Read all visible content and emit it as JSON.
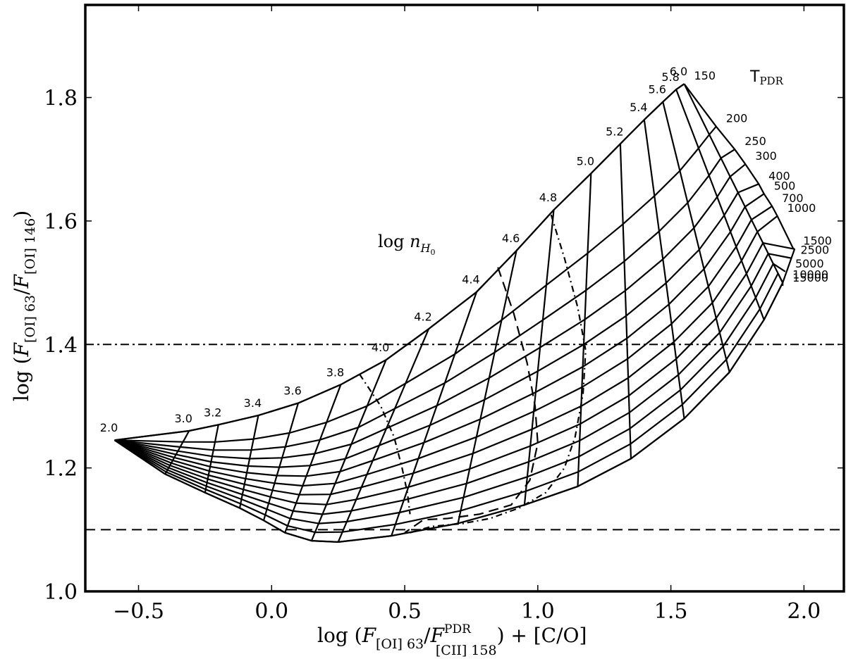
{
  "chart_data": {
    "type": "line",
    "xlim": [
      -0.7,
      2.15
    ],
    "ylim": [
      1.0,
      1.95
    ],
    "x_ticks": [
      -0.5,
      0.0,
      0.5,
      1.0,
      1.5,
      2.0
    ],
    "x_tick_labels": [
      "−0.5",
      "0.0",
      "0.5",
      "1.0",
      "1.5",
      "2.0"
    ],
    "y_ticks": [
      1.0,
      1.2,
      1.4,
      1.6,
      1.8
    ],
    "y_tick_labels": [
      "1.0",
      "1.2",
      "1.4",
      "1.6",
      "1.8"
    ],
    "xlabel": {
      "prefix": "log (",
      "f1": "F",
      "sub1": "[OI] 63",
      "slash": "/",
      "f2": "F",
      "sub2": "[CII] 158",
      "sup2": "PDR",
      "suffix": ") + [C/O]"
    },
    "ylabel": {
      "prefix": "log (",
      "f1": "F",
      "sub1": "[OI] 63",
      "slash": "/",
      "f2": "F",
      "sub2": "[OI] 146",
      "suffix": ")"
    },
    "grid": false,
    "density_label": {
      "text": "log ",
      "var": "n",
      "sub": "H",
      "subsub": "0"
    },
    "temperature_label": {
      "main": "T",
      "sub": "PDR"
    },
    "density_values": [
      "2.0",
      "3.0",
      "3.2",
      "3.4",
      "3.6",
      "3.8",
      "4.0",
      "4.2",
      "4.4",
      "4.6",
      "4.8",
      "5.0",
      "5.2",
      "5.4",
      "5.6",
      "5.8",
      "6.0"
    ],
    "density_points": [
      {
        "label": "2.0",
        "x": -0.59,
        "y": 1.245
      },
      {
        "label": "3.0",
        "x": -0.31,
        "y": 1.26
      },
      {
        "label": "3.2",
        "x": -0.2,
        "y": 1.27
      },
      {
        "label": "3.4",
        "x": -0.05,
        "y": 1.285
      },
      {
        "label": "3.6",
        "x": 0.1,
        "y": 1.305
      },
      {
        "label": "3.8",
        "x": 0.26,
        "y": 1.335
      },
      {
        "label": "4.0",
        "x": 0.43,
        "y": 1.375
      },
      {
        "label": "4.2",
        "x": 0.59,
        "y": 1.425
      },
      {
        "label": "4.4",
        "x": 0.77,
        "y": 1.485
      },
      {
        "label": "4.6",
        "x": 0.92,
        "y": 1.552
      },
      {
        "label": "4.8",
        "x": 1.06,
        "y": 1.618
      },
      {
        "label": "5.0",
        "x": 1.2,
        "y": 1.677
      },
      {
        "label": "5.2",
        "x": 1.31,
        "y": 1.725
      },
      {
        "label": "5.4",
        "x": 1.4,
        "y": 1.764
      },
      {
        "label": "5.6",
        "x": 1.47,
        "y": 1.793
      },
      {
        "label": "5.8",
        "x": 1.52,
        "y": 1.813
      },
      {
        "label": "6.0",
        "x": 1.55,
        "y": 1.822
      }
    ],
    "temperature_values": [
      "150",
      "200",
      "250",
      "300",
      "400",
      "500",
      "700",
      "1000",
      "1500",
      "2500",
      "5000",
      "10000",
      "15000"
    ],
    "temperature_points": [
      {
        "label": "150",
        "x": 1.55,
        "y": 1.822
      },
      {
        "label": "200",
        "x": 1.67,
        "y": 1.753
      },
      {
        "label": "250",
        "x": 1.74,
        "y": 1.716
      },
      {
        "label": "300",
        "x": 1.78,
        "y": 1.692
      },
      {
        "label": "400",
        "x": 1.83,
        "y": 1.66
      },
      {
        "label": "500",
        "x": 1.85,
        "y": 1.644
      },
      {
        "label": "700",
        "x": 1.88,
        "y": 1.624
      },
      {
        "label": "1000",
        "x": 1.9,
        "y": 1.608
      },
      {
        "label": "1500",
        "x": 1.96,
        "y": 1.555
      },
      {
        "label": "2500",
        "x": 1.95,
        "y": 1.54
      },
      {
        "label": "5000",
        "x": 1.93,
        "y": 1.518
      },
      {
        "label": "10000",
        "x": 1.92,
        "y": 1.5
      },
      {
        "label": "15000",
        "x": 1.92,
        "y": 1.495
      }
    ],
    "convergence_point": {
      "x": 1.965,
      "y": 1.555
    },
    "bottom_envelope": [
      {
        "x": -0.59,
        "y": 1.245
      },
      {
        "x": -0.4,
        "y": 1.19
      },
      {
        "x": -0.25,
        "y": 1.16
      },
      {
        "x": -0.12,
        "y": 1.135
      },
      {
        "x": -0.03,
        "y": 1.115
      },
      {
        "x": 0.05,
        "y": 1.095
      },
      {
        "x": 0.15,
        "y": 1.082
      },
      {
        "x": 0.25,
        "y": 1.08
      },
      {
        "x": 0.45,
        "y": 1.09
      },
      {
        "x": 0.7,
        "y": 1.11
      },
      {
        "x": 0.95,
        "y": 1.14
      },
      {
        "x": 1.15,
        "y": 1.17
      },
      {
        "x": 1.35,
        "y": 1.215
      },
      {
        "x": 1.55,
        "y": 1.28
      },
      {
        "x": 1.72,
        "y": 1.355
      },
      {
        "x": 1.85,
        "y": 1.44
      },
      {
        "x": 1.92,
        "y": 1.5
      }
    ],
    "reference_lines": [
      {
        "style": "dashdot",
        "y": 1.4
      },
      {
        "style": "dashed",
        "y": 1.1
      }
    ],
    "curves": [
      {
        "style": "dashdot",
        "points": [
          {
            "x": 0.33,
            "y": 1.352
          },
          {
            "x": 0.41,
            "y": 1.3
          },
          {
            "x": 0.46,
            "y": 1.25
          },
          {
            "x": 0.49,
            "y": 1.2
          },
          {
            "x": 0.51,
            "y": 1.16
          },
          {
            "x": 0.52,
            "y": 1.125
          }
        ]
      },
      {
        "style": "dashed",
        "points": [
          {
            "x": 0.85,
            "y": 1.525
          },
          {
            "x": 0.91,
            "y": 1.45
          },
          {
            "x": 0.96,
            "y": 1.37
          },
          {
            "x": 0.99,
            "y": 1.3
          },
          {
            "x": 1.0,
            "y": 1.24
          },
          {
            "x": 0.97,
            "y": 1.18
          },
          {
            "x": 0.9,
            "y": 1.14
          },
          {
            "x": 0.78,
            "y": 1.125
          },
          {
            "x": 0.66,
            "y": 1.118
          },
          {
            "x": 0.57,
            "y": 1.116
          },
          {
            "x": 0.5,
            "y": 1.095
          }
        ]
      },
      {
        "style": "dashdot",
        "points": [
          {
            "x": 1.05,
            "y": 1.61
          },
          {
            "x": 1.1,
            "y": 1.54
          },
          {
            "x": 1.15,
            "y": 1.46
          },
          {
            "x": 1.18,
            "y": 1.39
          },
          {
            "x": 1.17,
            "y": 1.32
          },
          {
            "x": 1.14,
            "y": 1.25
          },
          {
            "x": 1.1,
            "y": 1.2
          },
          {
            "x": 1.03,
            "y": 1.16
          },
          {
            "x": 0.93,
            "y": 1.135
          },
          {
            "x": 0.82,
            "y": 1.118
          },
          {
            "x": 0.72,
            "y": 1.11
          },
          {
            "x": 0.6,
            "y": 1.105
          },
          {
            "x": 0.52,
            "y": 1.095
          }
        ]
      }
    ]
  }
}
